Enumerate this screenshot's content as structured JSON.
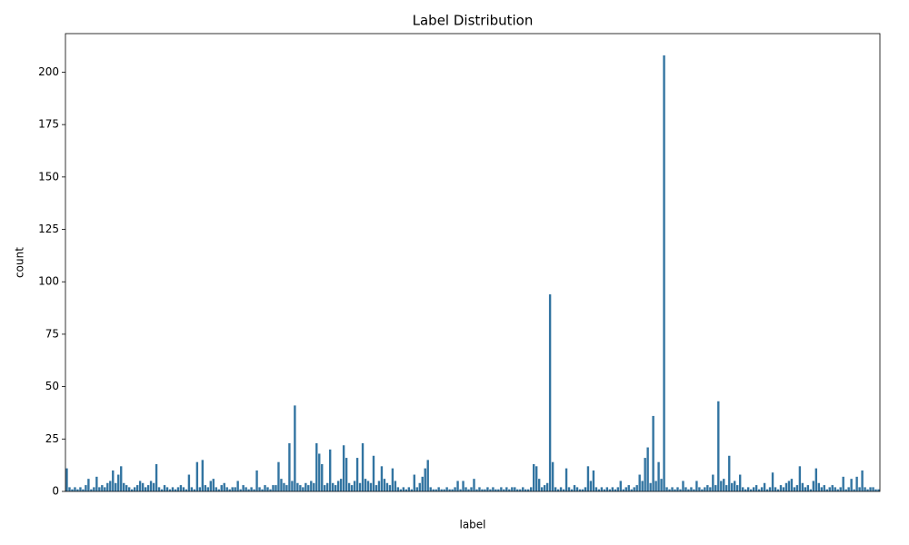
{
  "chart_data": {
    "type": "bar",
    "title": "Label Distribution",
    "x_label": "label",
    "y_label": "count",
    "categories": [
      null,
      null,
      null,
      null,
      null,
      null,
      null,
      null,
      null,
      null,
      null,
      null,
      null,
      null,
      null,
      null,
      null,
      null,
      null,
      null,
      null,
      null,
      null,
      null,
      null,
      null,
      null,
      null,
      null,
      null,
      null,
      null,
      null,
      null,
      null,
      null,
      null,
      null,
      null,
      null,
      null,
      null,
      null,
      null,
      null,
      null,
      null,
      null,
      null,
      null,
      null,
      null,
      null,
      null,
      null,
      null,
      null,
      null,
      null,
      null,
      null,
      null,
      null,
      null,
      null,
      null,
      null,
      null,
      null,
      null,
      null,
      null,
      null,
      null,
      null,
      null,
      null,
      null,
      null,
      null,
      null,
      null,
      null,
      null,
      null,
      null,
      null,
      null,
      null,
      null,
      null,
      null,
      null,
      null,
      null,
      null,
      null,
      null,
      null,
      null,
      null,
      null,
      null,
      null,
      null,
      null,
      null,
      null,
      null,
      null,
      null,
      null,
      null,
      null,
      null,
      null,
      null,
      null,
      null,
      null,
      null,
      null,
      null,
      null,
      null,
      null,
      null,
      null,
      null,
      null,
      null,
      null,
      null,
      null,
      null,
      null,
      null,
      null,
      null,
      null,
      null,
      null,
      null,
      null,
      null,
      null,
      null,
      null,
      null,
      null,
      null,
      null,
      null,
      null,
      null,
      null,
      null,
      null,
      null,
      null,
      null,
      null,
      null,
      null,
      null,
      null,
      null,
      null,
      null,
      null,
      null,
      null,
      null,
      null,
      null,
      null,
      null,
      null,
      null,
      null,
      null,
      null,
      null,
      null,
      null,
      null,
      null,
      null,
      null,
      null,
      null,
      null,
      null,
      null,
      null,
      null,
      null,
      null,
      null,
      null,
      null,
      null,
      null,
      null,
      null,
      null,
      null,
      null,
      null,
      null,
      null,
      null,
      null,
      null,
      null,
      null,
      null,
      null,
      null,
      null,
      null,
      null,
      null,
      null,
      null,
      null,
      null,
      null,
      null,
      null,
      null,
      null,
      null,
      null,
      null,
      null,
      null,
      null,
      null,
      null,
      null,
      null,
      null,
      null,
      null,
      null,
      null,
      null,
      null,
      null,
      null,
      null,
      null,
      null,
      null,
      null,
      null,
      null,
      null,
      null,
      null,
      null,
      null,
      null,
      null,
      null,
      null,
      null,
      null,
      null,
      null,
      null,
      null,
      null,
      null,
      null,
      null,
      null,
      null,
      null,
      null,
      null,
      null,
      null,
      null,
      null,
      null,
      null,
      null,
      null,
      null,
      null,
      null,
      null,
      null,
      null,
      null,
      null,
      null,
      null
    ],
    "values": [
      11,
      2,
      1,
      2,
      1,
      2,
      1,
      3,
      6,
      1,
      2,
      7,
      2,
      3,
      2,
      4,
      5,
      10,
      4,
      8,
      12,
      4,
      3,
      2,
      1,
      2,
      3,
      5,
      4,
      2,
      3,
      5,
      4,
      13,
      2,
      1,
      3,
      2,
      1,
      2,
      1,
      2,
      3,
      2,
      1,
      8,
      2,
      1,
      14,
      2,
      15,
      3,
      2,
      5,
      6,
      2,
      1,
      3,
      4,
      2,
      1,
      2,
      2,
      5,
      1,
      3,
      2,
      1,
      2,
      1,
      10,
      2,
      1,
      3,
      2,
      1,
      3,
      3,
      14,
      6,
      4,
      3,
      23,
      5,
      41,
      4,
      3,
      2,
      4,
      3,
      5,
      4,
      23,
      18,
      13,
      3,
      4,
      20,
      4,
      3,
      5,
      6,
      22,
      16,
      4,
      3,
      5,
      16,
      4,
      23,
      6,
      5,
      4,
      17,
      3,
      5,
      12,
      6,
      4,
      3,
      11,
      5,
      2,
      1,
      2,
      1,
      2,
      1,
      8,
      2,
      4,
      7,
      11,
      15,
      2,
      1,
      1,
      2,
      1,
      1,
      2,
      1,
      1,
      2,
      5,
      1,
      5,
      2,
      1,
      2,
      6,
      1,
      2,
      1,
      1,
      2,
      1,
      2,
      1,
      1,
      2,
      1,
      2,
      1,
      2,
      2,
      1,
      1,
      2,
      1,
      1,
      2,
      13,
      12,
      6,
      2,
      3,
      4,
      94,
      14,
      2,
      1,
      2,
      1,
      11,
      2,
      1,
      3,
      2,
      1,
      1,
      2,
      12,
      5,
      10,
      2,
      1,
      2,
      1,
      2,
      1,
      2,
      1,
      2,
      5,
      1,
      2,
      3,
      1,
      2,
      3,
      8,
      5,
      16,
      21,
      4,
      36,
      5,
      14,
      6,
      208,
      2,
      1,
      2,
      1,
      2,
      1,
      5,
      2,
      1,
      2,
      1,
      5,
      2,
      1,
      2,
      3,
      2,
      8,
      3,
      43,
      5,
      6,
      3,
      17,
      4,
      5,
      3,
      8,
      2,
      1,
      2,
      1,
      2,
      3,
      1,
      2,
      4,
      1,
      2,
      9,
      2,
      1,
      3,
      2,
      4,
      5,
      6,
      2,
      3,
      12,
      4,
      2,
      3,
      1,
      5,
      11,
      4,
      2,
      3,
      1,
      2,
      3,
      2,
      1,
      2,
      7,
      1,
      2,
      6,
      1,
      7,
      2,
      10,
      2,
      1,
      2,
      2,
      1,
      1
    ],
    "color": "#3274a1",
    "ylim": [
      0,
      218.4
    ],
    "yticks": [
      0,
      25,
      50,
      75,
      100,
      125,
      150,
      175,
      200
    ]
  }
}
